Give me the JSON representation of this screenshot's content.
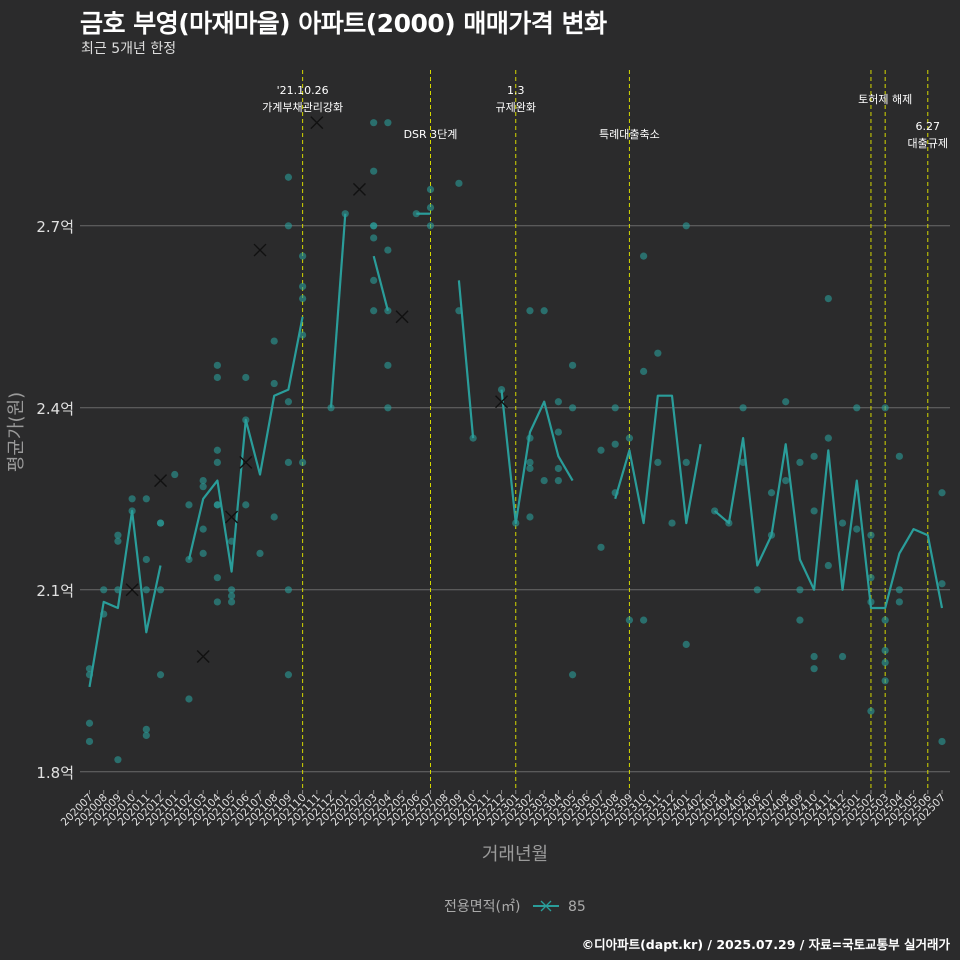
{
  "header": {
    "title": "금호 부영(마재마을) 아파트(2000) 매매가격 변화",
    "subtitle": "최근 5개년 한정"
  },
  "caption": "©디아파트(dapt.kr) / 2025.07.29 / 자료=국토교통부 실거래가",
  "colors": {
    "background": "#2b2b2c",
    "series": "#2a9d9a",
    "event_line": "#d4d800",
    "grid": "#6a6a6a",
    "text": "#e8e8e8"
  },
  "chart_data": {
    "type": "line",
    "xlabel": "거래년월",
    "ylabel": "평균가(원)",
    "ylim": [
      1.77,
      2.97
    ],
    "yticks": [
      1.8,
      2.1,
      2.4,
      2.7
    ],
    "ytick_labels": [
      "1.8억",
      "2.1억",
      "2.4억",
      "2.7억"
    ],
    "grid": true,
    "legend": {
      "title": "전용면적(㎡)",
      "entries": [
        "85"
      ],
      "position": "bottom"
    },
    "categories": [
      "202007",
      "202008",
      "202009",
      "202010",
      "202011",
      "202012",
      "202101",
      "202102",
      "202103",
      "202104",
      "202105",
      "202106",
      "202107",
      "202108",
      "202109",
      "202110",
      "202111",
      "202112",
      "202201",
      "202202",
      "202203",
      "202204",
      "202205",
      "202206",
      "202207",
      "202208",
      "202209",
      "202210",
      "202211",
      "202212",
      "202301",
      "202302",
      "202303",
      "202304",
      "202305",
      "202306",
      "202307",
      "202308",
      "202309",
      "202310",
      "202311",
      "202312",
      "202401",
      "202402",
      "202403",
      "202404",
      "202405",
      "202406",
      "202407",
      "202408",
      "202409",
      "202410",
      "202411",
      "202412",
      "202501",
      "202502",
      "202503",
      "202504",
      "202505",
      "202506",
      "202507"
    ],
    "series": [
      {
        "name": "85",
        "segments": [
          {
            "start": 0,
            "values": [
              1.94,
              2.08,
              2.07,
              2.23,
              2.03,
              2.14
            ]
          },
          {
            "start": 7,
            "values": [
              2.15,
              2.25,
              2.28,
              2.13,
              2.38,
              2.29,
              2.42,
              2.43,
              2.55
            ]
          },
          {
            "start": 17,
            "values": [
              2.4,
              2.72
            ]
          },
          {
            "start": 20,
            "values": [
              2.65,
              2.56
            ]
          },
          {
            "start": 23,
            "values": [
              2.72,
              2.72
            ]
          },
          {
            "start": 26,
            "values": [
              2.61,
              2.35
            ]
          },
          {
            "start": 29,
            "values": [
              2.43,
              2.21,
              2.36,
              2.41,
              2.32,
              2.28
            ]
          },
          {
            "start": 37,
            "values": [
              2.25,
              2.33,
              2.21,
              2.42,
              2.42,
              2.21,
              2.34
            ]
          },
          {
            "start": 44,
            "values": [
              2.23,
              2.21,
              2.35,
              2.14,
              2.19,
              2.34,
              2.15,
              2.1,
              2.33,
              2.1,
              2.28,
              2.07,
              2.07,
              2.16,
              2.2,
              2.19,
              2.07
            ]
          }
        ]
      }
    ],
    "points": [
      [
        0,
        1.97
      ],
      [
        0,
        1.96
      ],
      [
        0,
        1.88
      ],
      [
        0,
        1.85
      ],
      [
        1,
        2.1
      ],
      [
        1,
        2.06
      ],
      [
        2,
        1.82
      ],
      [
        2,
        2.18
      ],
      [
        2,
        2.19
      ],
      [
        2,
        2.1
      ],
      [
        3,
        2.25
      ],
      [
        3,
        2.23
      ],
      [
        4,
        2.25
      ],
      [
        4,
        2.15
      ],
      [
        4,
        2.1
      ],
      [
        4,
        1.87
      ],
      [
        4,
        1.86
      ],
      [
        5,
        2.21
      ],
      [
        5,
        2.21
      ],
      [
        5,
        2.1
      ],
      [
        5,
        1.96
      ],
      [
        6,
        2.29
      ],
      [
        7,
        2.24
      ],
      [
        7,
        2.15
      ],
      [
        7,
        1.92
      ],
      [
        8,
        2.28
      ],
      [
        8,
        2.27
      ],
      [
        8,
        2.2
      ],
      [
        8,
        2.16
      ],
      [
        9,
        2.31
      ],
      [
        9,
        2.24
      ],
      [
        9,
        2.24
      ],
      [
        9,
        2.33
      ],
      [
        9,
        2.08
      ],
      [
        9,
        2.12
      ],
      [
        9,
        2.45
      ],
      [
        9,
        2.47
      ],
      [
        10,
        2.18
      ],
      [
        10,
        2.09
      ],
      [
        10,
        2.1
      ],
      [
        10,
        2.08
      ],
      [
        11,
        2.45
      ],
      [
        11,
        2.38
      ],
      [
        11,
        2.24
      ],
      [
        12,
        2.16
      ],
      [
        13,
        2.51
      ],
      [
        13,
        2.44
      ],
      [
        13,
        2.22
      ],
      [
        14,
        2.78
      ],
      [
        14,
        2.7
      ],
      [
        14,
        2.41
      ],
      [
        14,
        2.1
      ],
      [
        14,
        1.96
      ],
      [
        14,
        2.31
      ],
      [
        15,
        2.65
      ],
      [
        15,
        2.6
      ],
      [
        15,
        2.58
      ],
      [
        15,
        2.52
      ],
      [
        15,
        2.31
      ],
      [
        17,
        2.4
      ],
      [
        18,
        2.72
      ],
      [
        20,
        2.87
      ],
      [
        20,
        2.79
      ],
      [
        20,
        2.7
      ],
      [
        20,
        2.7
      ],
      [
        20,
        2.68
      ],
      [
        20,
        2.61
      ],
      [
        20,
        2.56
      ],
      [
        21,
        2.66
      ],
      [
        21,
        2.56
      ],
      [
        21,
        2.47
      ],
      [
        21,
        2.4
      ],
      [
        21,
        2.87
      ],
      [
        23,
        2.72
      ],
      [
        24,
        2.76
      ],
      [
        24,
        2.7
      ],
      [
        24,
        2.73
      ],
      [
        26,
        2.77
      ],
      [
        26,
        2.56
      ],
      [
        27,
        2.35
      ],
      [
        29,
        2.43
      ],
      [
        30,
        2.21
      ],
      [
        31,
        2.56
      ],
      [
        31,
        2.35
      ],
      [
        31,
        2.31
      ],
      [
        31,
        2.3
      ],
      [
        31,
        2.22
      ],
      [
        32,
        2.56
      ],
      [
        32,
        2.28
      ],
      [
        33,
        2.41
      ],
      [
        33,
        2.36
      ],
      [
        33,
        2.3
      ],
      [
        33,
        2.28
      ],
      [
        34,
        2.47
      ],
      [
        34,
        2.4
      ],
      [
        34,
        1.96
      ],
      [
        36,
        2.33
      ],
      [
        36,
        2.17
      ],
      [
        37,
        2.4
      ],
      [
        37,
        2.34
      ],
      [
        37,
        2.26
      ],
      [
        38,
        2.35
      ],
      [
        38,
        2.05
      ],
      [
        39,
        2.65
      ],
      [
        39,
        2.46
      ],
      [
        39,
        2.05
      ],
      [
        40,
        2.49
      ],
      [
        40,
        2.31
      ],
      [
        41,
        2.21
      ],
      [
        42,
        2.7
      ],
      [
        42,
        2.31
      ],
      [
        42,
        2.01
      ],
      [
        44,
        2.23
      ],
      [
        45,
        2.21
      ],
      [
        46,
        2.4
      ],
      [
        46,
        2.31
      ],
      [
        47,
        2.1
      ],
      [
        48,
        2.19
      ],
      [
        48,
        2.26
      ],
      [
        49,
        2.41
      ],
      [
        49,
        2.28
      ],
      [
        50,
        2.31
      ],
      [
        50,
        2.1
      ],
      [
        50,
        2.05
      ],
      [
        51,
        2.32
      ],
      [
        51,
        2.23
      ],
      [
        51,
        1.99
      ],
      [
        51,
        1.97
      ],
      [
        52,
        2.35
      ],
      [
        52,
        2.14
      ],
      [
        52,
        2.58
      ],
      [
        53,
        2.21
      ],
      [
        53,
        1.99
      ],
      [
        54,
        2.4
      ],
      [
        54,
        2.2
      ],
      [
        55,
        2.19
      ],
      [
        55,
        2.12
      ],
      [
        55,
        2.08
      ],
      [
        55,
        1.9
      ],
      [
        56,
        2.4
      ],
      [
        56,
        2.05
      ],
      [
        56,
        2.0
      ],
      [
        56,
        1.98
      ],
      [
        56,
        1.95
      ],
      [
        57,
        2.1
      ],
      [
        57,
        2.08
      ],
      [
        57,
        2.32
      ],
      [
        60,
        2.26
      ],
      [
        60,
        2.11
      ],
      [
        60,
        1.85
      ]
    ],
    "crosses": [
      [
        3,
        2.1
      ],
      [
        5,
        2.28
      ],
      [
        8,
        1.99
      ],
      [
        10,
        2.22
      ],
      [
        11,
        2.31
      ],
      [
        12,
        2.66
      ],
      [
        16,
        2.87
      ],
      [
        19,
        2.76
      ],
      [
        22,
        2.55
      ],
      [
        29,
        2.41
      ]
    ],
    "events": [
      {
        "x": 15.0,
        "lines": [
          "'21.10.26",
          "가계부채관리강화"
        ]
      },
      {
        "x": 24.0,
        "lines": [
          "DSR 3단계"
        ]
      },
      {
        "x": 30.0,
        "lines": [
          "1.3",
          "규제완화"
        ]
      },
      {
        "x": 38.0,
        "lines": [
          "특례대출축소"
        ]
      },
      {
        "x": 55.0,
        "lines": []
      },
      {
        "x": 56.0,
        "lines": [
          "토허제 해제"
        ]
      },
      {
        "x": 59.0,
        "lines": [
          "6.27",
          "대출규제"
        ]
      }
    ]
  }
}
